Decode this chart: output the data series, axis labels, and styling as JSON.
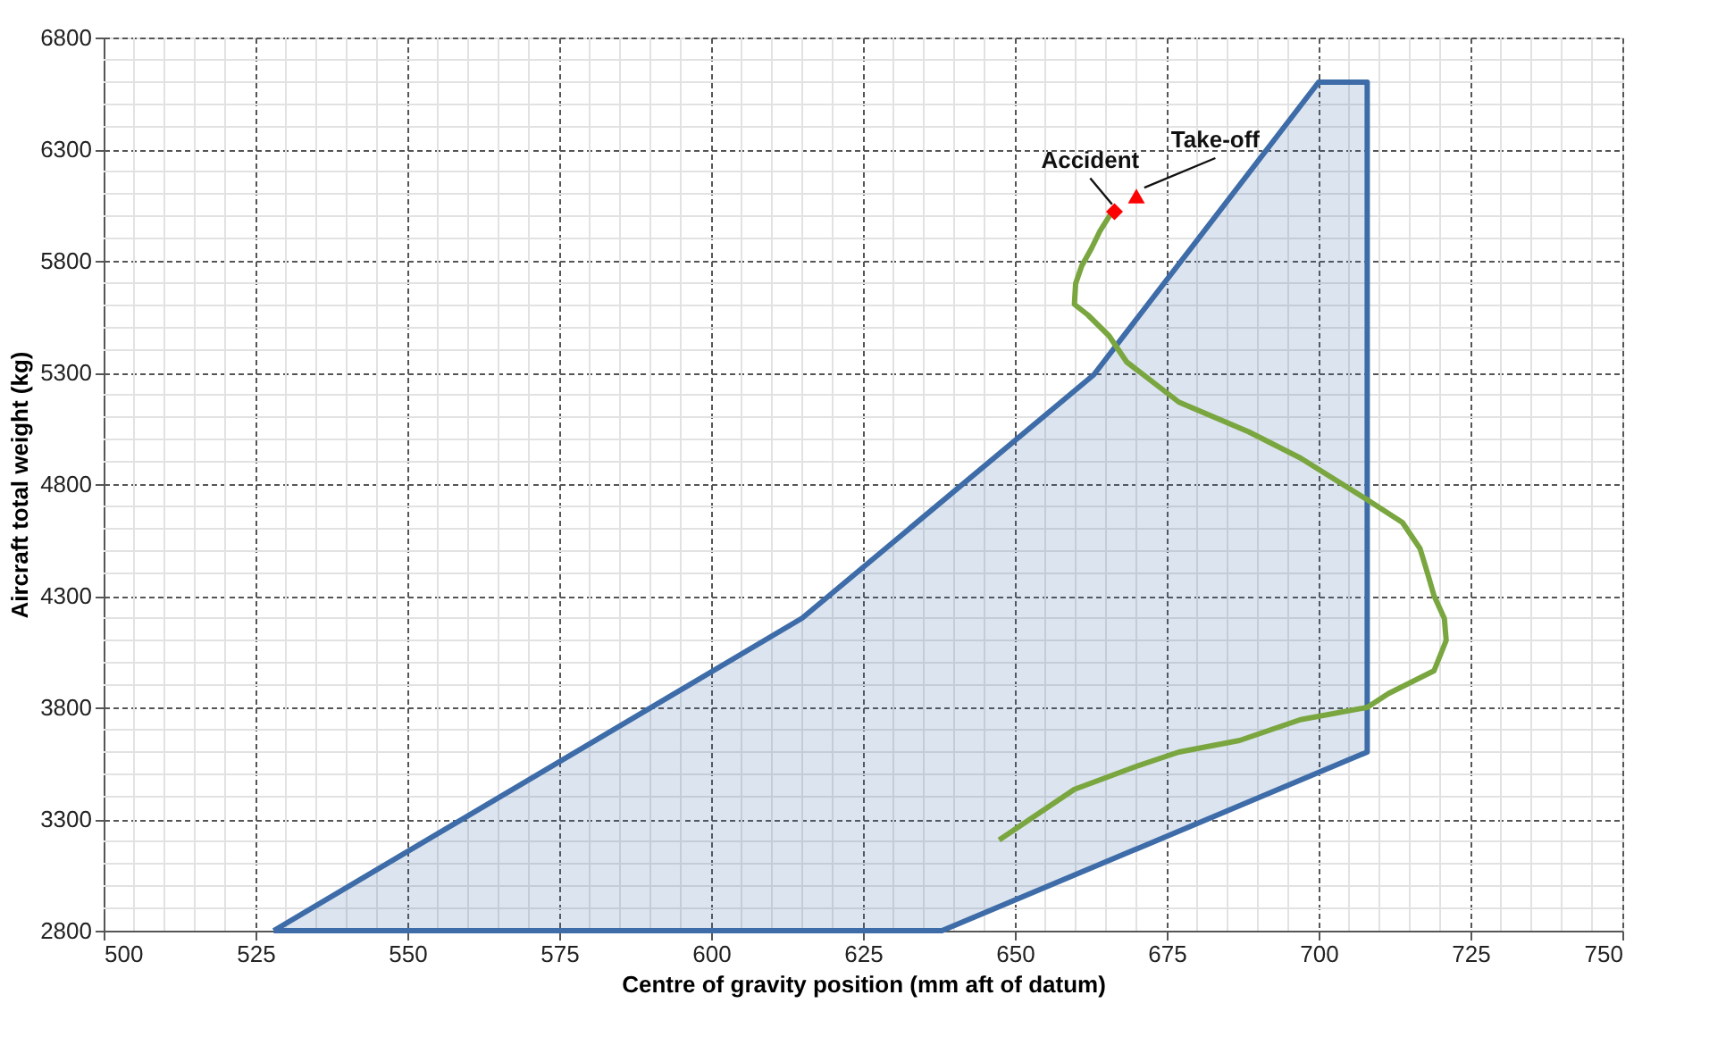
{
  "chart_data": {
    "type": "line",
    "xlabel": "Centre of gravity position (mm aft of datum)",
    "ylabel": "Aircraft total weight (kg)",
    "xlim": [
      500,
      750
    ],
    "xticks": [
      500,
      525,
      550,
      575,
      600,
      625,
      650,
      675,
      700,
      725,
      750
    ],
    "ylim": [
      2800,
      6800
    ],
    "yticks": [
      2800,
      3300,
      3800,
      4300,
      4800,
      5300,
      5800,
      6300,
      6800
    ],
    "grid": true,
    "series": [
      {
        "type": "area",
        "color": "#3d6ca8",
        "x": [
          528,
          615,
          663,
          700,
          708,
          708,
          638,
          528
        ],
        "values": [
          2800,
          4200,
          5290,
          6600,
          6600,
          3600,
          2800,
          2800
        ]
      },
      {
        "color": "#7aa640",
        "marker": "none",
        "x": [
          647.4,
          659.8,
          669.8,
          677,
          687,
          697,
          708,
          711.5,
          719,
          721,
          720.7,
          719,
          718,
          716.7,
          713.8,
          708,
          697,
          688.5,
          677,
          674,
          668.4,
          665.5,
          662,
          659.8,
          660,
          661,
          662.6,
          664,
          666
        ],
        "values": [
          3206,
          3433,
          3534,
          3600,
          3652,
          3745,
          3800,
          3862,
          3964,
          4100,
          4198,
          4300,
          4394,
          4511,
          4628,
          4730,
          4917,
          5034,
          5167,
          5230,
          5347,
          5464,
          5558,
          5605,
          5698,
          5777,
          5855,
          5933,
          6020
        ]
      },
      {
        "type": "scatter",
        "color": "#ff0000",
        "marker": "diamond",
        "x": [
          666.4
        ],
        "values": [
          6020
        ]
      },
      {
        "type": "scatter",
        "color": "#ff0000",
        "marker": "triangle",
        "x": [
          670
        ],
        "values": [
          6090
        ]
      }
    ],
    "annotations": [
      {
        "text": "Accident",
        "x": 666.4,
        "y": 6020
      },
      {
        "text": "Take-off",
        "x": 670,
        "y": 6090
      }
    ]
  }
}
